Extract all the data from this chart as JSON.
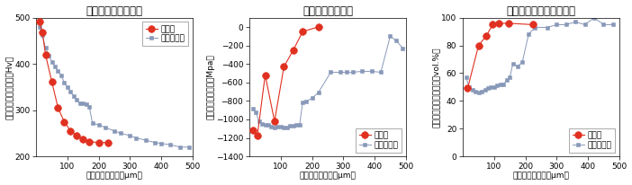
{
  "chart1": {
    "title": "ビッカース硬さ分布",
    "ylabel": "ビッカース硬さ分布（Hv）",
    "xlabel": "表面からの深さ（μm）",
    "ylim": [
      200,
      500
    ],
    "xlim": [
      0,
      500
    ],
    "yticks": [
      200,
      300,
      400,
      500
    ],
    "xticks": [
      100,
      200,
      300,
      400,
      500
    ],
    "micro_x": [
      10,
      20,
      30,
      50,
      70,
      90,
      110,
      130,
      150,
      170,
      200,
      230
    ],
    "micro_y": [
      492,
      468,
      420,
      362,
      305,
      275,
      255,
      245,
      238,
      232,
      230,
      230
    ],
    "shot_x": [
      10,
      20,
      30,
      40,
      50,
      60,
      70,
      80,
      90,
      100,
      110,
      120,
      130,
      140,
      150,
      160,
      170,
      180,
      200,
      220,
      250,
      270,
      300,
      320,
      350,
      380,
      400,
      430,
      460,
      490
    ],
    "shot_y": [
      480,
      462,
      435,
      418,
      405,
      395,
      385,
      375,
      360,
      350,
      340,
      330,
      322,
      315,
      315,
      312,
      308,
      272,
      268,
      263,
      255,
      250,
      245,
      240,
      235,
      230,
      228,
      225,
      220,
      220
    ],
    "legend_loc": "upper right"
  },
  "chart2": {
    "title": "残留圧縮応力分布",
    "ylabel": "残留圧縮応力分布（Mpa）",
    "xlabel": "表面からの深さ（μm）",
    "ylim": [
      -1400,
      100
    ],
    "xlim": [
      0,
      500
    ],
    "yticks": [
      -1400,
      -1200,
      -1000,
      -800,
      -600,
      -400,
      -200,
      0
    ],
    "xticks": [
      100,
      200,
      300,
      400,
      500
    ],
    "micro_x": [
      10,
      25,
      50,
      80,
      110,
      140,
      170,
      220
    ],
    "micro_y": [
      -1120,
      -1175,
      -520,
      -1020,
      -430,
      -250,
      -50,
      0
    ],
    "shot_x": [
      10,
      20,
      30,
      40,
      50,
      60,
      70,
      80,
      90,
      100,
      110,
      120,
      130,
      140,
      150,
      160,
      170,
      180,
      200,
      220,
      260,
      290,
      310,
      330,
      360,
      390,
      420,
      450,
      470,
      490
    ],
    "shot_y": [
      -880,
      -920,
      -1020,
      -1050,
      -1060,
      -1060,
      -1080,
      -1090,
      -1080,
      -1080,
      -1090,
      -1090,
      -1070,
      -1070,
      -1060,
      -1060,
      -820,
      -810,
      -770,
      -710,
      -490,
      -490,
      -490,
      -490,
      -480,
      -480,
      -490,
      -100,
      -150,
      -230
    ],
    "legend_loc": "lower right"
  },
  "chart3": {
    "title": "オーステナイト量の分布",
    "ylabel": "オーステナイト量分布（vol.%）",
    "xlabel": "表面からの深さ（μm）",
    "ylim": [
      0,
      100
    ],
    "xlim": [
      0,
      500
    ],
    "yticks": [
      0,
      20,
      40,
      60,
      80,
      100
    ],
    "xticks": [
      100,
      200,
      300,
      400,
      500
    ],
    "micro_x": [
      15,
      50,
      75,
      95,
      115,
      145,
      225
    ],
    "micro_y": [
      49,
      80,
      87,
      95,
      96,
      96,
      95
    ],
    "shot_x": [
      10,
      20,
      30,
      40,
      50,
      60,
      70,
      80,
      90,
      100,
      110,
      120,
      130,
      140,
      150,
      160,
      175,
      190,
      210,
      230,
      270,
      300,
      330,
      360,
      390,
      420,
      450,
      480
    ],
    "shot_y": [
      57,
      50,
      48,
      47,
      46,
      47,
      48,
      49,
      50,
      50,
      51,
      52,
      52,
      55,
      57,
      67,
      65,
      68,
      88,
      93,
      93,
      95,
      95,
      97,
      95,
      100,
      95,
      95
    ],
    "legend_loc": "lower right"
  },
  "micro_color": "#e03020",
  "shot_color": "#8898b8",
  "micro_label": "微粒子",
  "shot_label": "ショット材",
  "legend_fontsize": 6.5,
  "title_fontsize": 8.5,
  "label_fontsize": 6.5,
  "tick_fontsize": 6.5
}
